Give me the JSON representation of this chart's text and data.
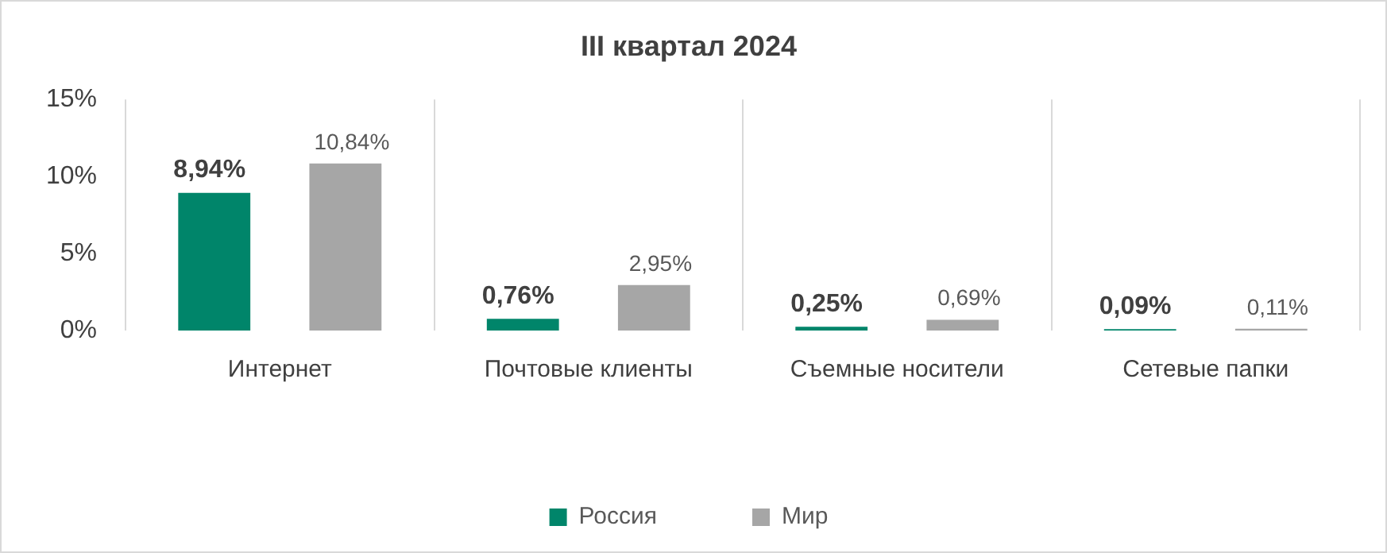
{
  "chart_data": {
    "type": "bar",
    "title": "III квартал 2024",
    "categories": [
      "Интернет",
      "Почтовые клиенты",
      "Съемные носители",
      "Сетевые папки"
    ],
    "series": [
      {
        "name": "Россия",
        "color": "#00856a",
        "values": [
          8.94,
          0.76,
          0.25,
          0.09
        ],
        "value_labels": [
          "8,94%",
          "0,76%",
          "0,25%",
          "0,09%"
        ]
      },
      {
        "name": "Мир",
        "color": "#a6a6a6",
        "values": [
          10.84,
          2.95,
          0.69,
          0.11
        ],
        "value_labels": [
          "10,84%",
          "2,95%",
          "0,69%",
          "0,11%"
        ]
      }
    ],
    "ylim": [
      0,
      15
    ],
    "yticks": [
      {
        "value": 0,
        "label": "0%"
      },
      {
        "value": 5,
        "label": "5%"
      },
      {
        "value": 10,
        "label": "10%"
      },
      {
        "value": 15,
        "label": "15%"
      }
    ],
    "grid": "x",
    "legend": "bottom"
  }
}
